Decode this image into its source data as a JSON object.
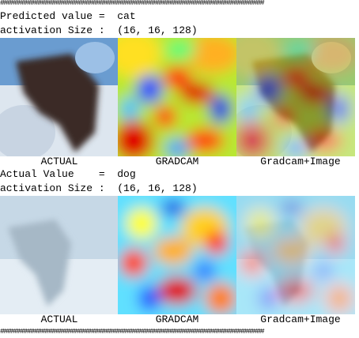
{
  "separator_top": "##########################################################################",
  "blocks": [
    {
      "line1": "Predicted value =  cat",
      "line2": "activation Size :  (16, 16, 128)",
      "labels": [
        "ACTUAL",
        "GRADCAM",
        "Gradcam+Image"
      ]
    },
    {
      "line1": "Actual Value    =  dog",
      "line2": "activation Size :  (16, 16, 128)",
      "labels": [
        "ACTUAL",
        "GRADCAM",
        "Gradcam+Image"
      ]
    }
  ],
  "separator_bottom": "##########################################################################"
}
